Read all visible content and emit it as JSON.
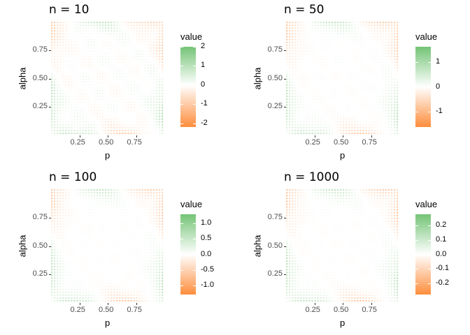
{
  "chart_data": [
    {
      "type": "heatmap",
      "title": "n = 10",
      "xlabel": "p",
      "ylabel": "alpha",
      "x_ticks": [
        "0.25",
        "0.50",
        "0.75"
      ],
      "y_ticks": [
        "0.25",
        "0.50",
        "0.75"
      ],
      "xlim": [
        0,
        1
      ],
      "ylim": [
        0,
        1
      ],
      "legend_title": "value",
      "legend_ticks": [
        "2",
        "1",
        "0",
        "-1",
        "-2"
      ],
      "legend_values": [
        2,
        1,
        0,
        -1,
        -2
      ],
      "value_range": [
        -2.2,
        2.0
      ],
      "grid": false,
      "legend_position": "right",
      "pattern_amplitude": 0.9
    },
    {
      "type": "heatmap",
      "title": "n = 50",
      "xlabel": "p",
      "ylabel": "alpha",
      "x_ticks": [
        "0.25",
        "0.50",
        "0.75"
      ],
      "y_ticks": [
        "0.25",
        "0.50",
        "0.75"
      ],
      "xlim": [
        0,
        1
      ],
      "ylim": [
        0,
        1
      ],
      "legend_title": "value",
      "legend_ticks": [
        "1",
        "0",
        "-1"
      ],
      "legend_values": [
        1,
        0,
        -1
      ],
      "value_range": [
        -1.6,
        1.6
      ],
      "grid": false,
      "legend_position": "right",
      "pattern_amplitude": 0.35
    },
    {
      "type": "heatmap",
      "title": "n = 100",
      "xlabel": "p",
      "ylabel": "alpha",
      "x_ticks": [
        "0.25",
        "0.50",
        "0.75"
      ],
      "y_ticks": [
        "0.25",
        "0.50",
        "0.75"
      ],
      "xlim": [
        0,
        1
      ],
      "ylim": [
        0,
        1
      ],
      "legend_title": "value",
      "legend_ticks": [
        "1.0",
        "0.5",
        "0.0",
        "-0.5",
        "-1.0"
      ],
      "legend_values": [
        1.0,
        0.5,
        0.0,
        -0.5,
        -1.0
      ],
      "value_range": [
        -1.3,
        1.3
      ],
      "grid": false,
      "legend_position": "right",
      "pattern_amplitude": 0.22
    },
    {
      "type": "heatmap",
      "title": "n = 1000",
      "xlabel": "p",
      "ylabel": "alpha",
      "x_ticks": [
        "0.25",
        "0.50",
        "0.75"
      ],
      "y_ticks": [
        "0.25",
        "0.50",
        "0.75"
      ],
      "xlim": [
        0,
        1
      ],
      "ylim": [
        0,
        1
      ],
      "legend_title": "value",
      "legend_ticks": [
        "0.2",
        "0.1",
        "0.0",
        "-0.1",
        "-0.2"
      ],
      "legend_values": [
        0.2,
        0.1,
        0.0,
        -0.1,
        -0.2
      ],
      "value_range": [
        -0.28,
        0.28
      ],
      "grid": false,
      "legend_position": "right",
      "pattern_amplitude": 0.05
    }
  ],
  "colors": {
    "high": "#74c476",
    "mid": "#ffffff",
    "low": "#fd8d3c"
  }
}
